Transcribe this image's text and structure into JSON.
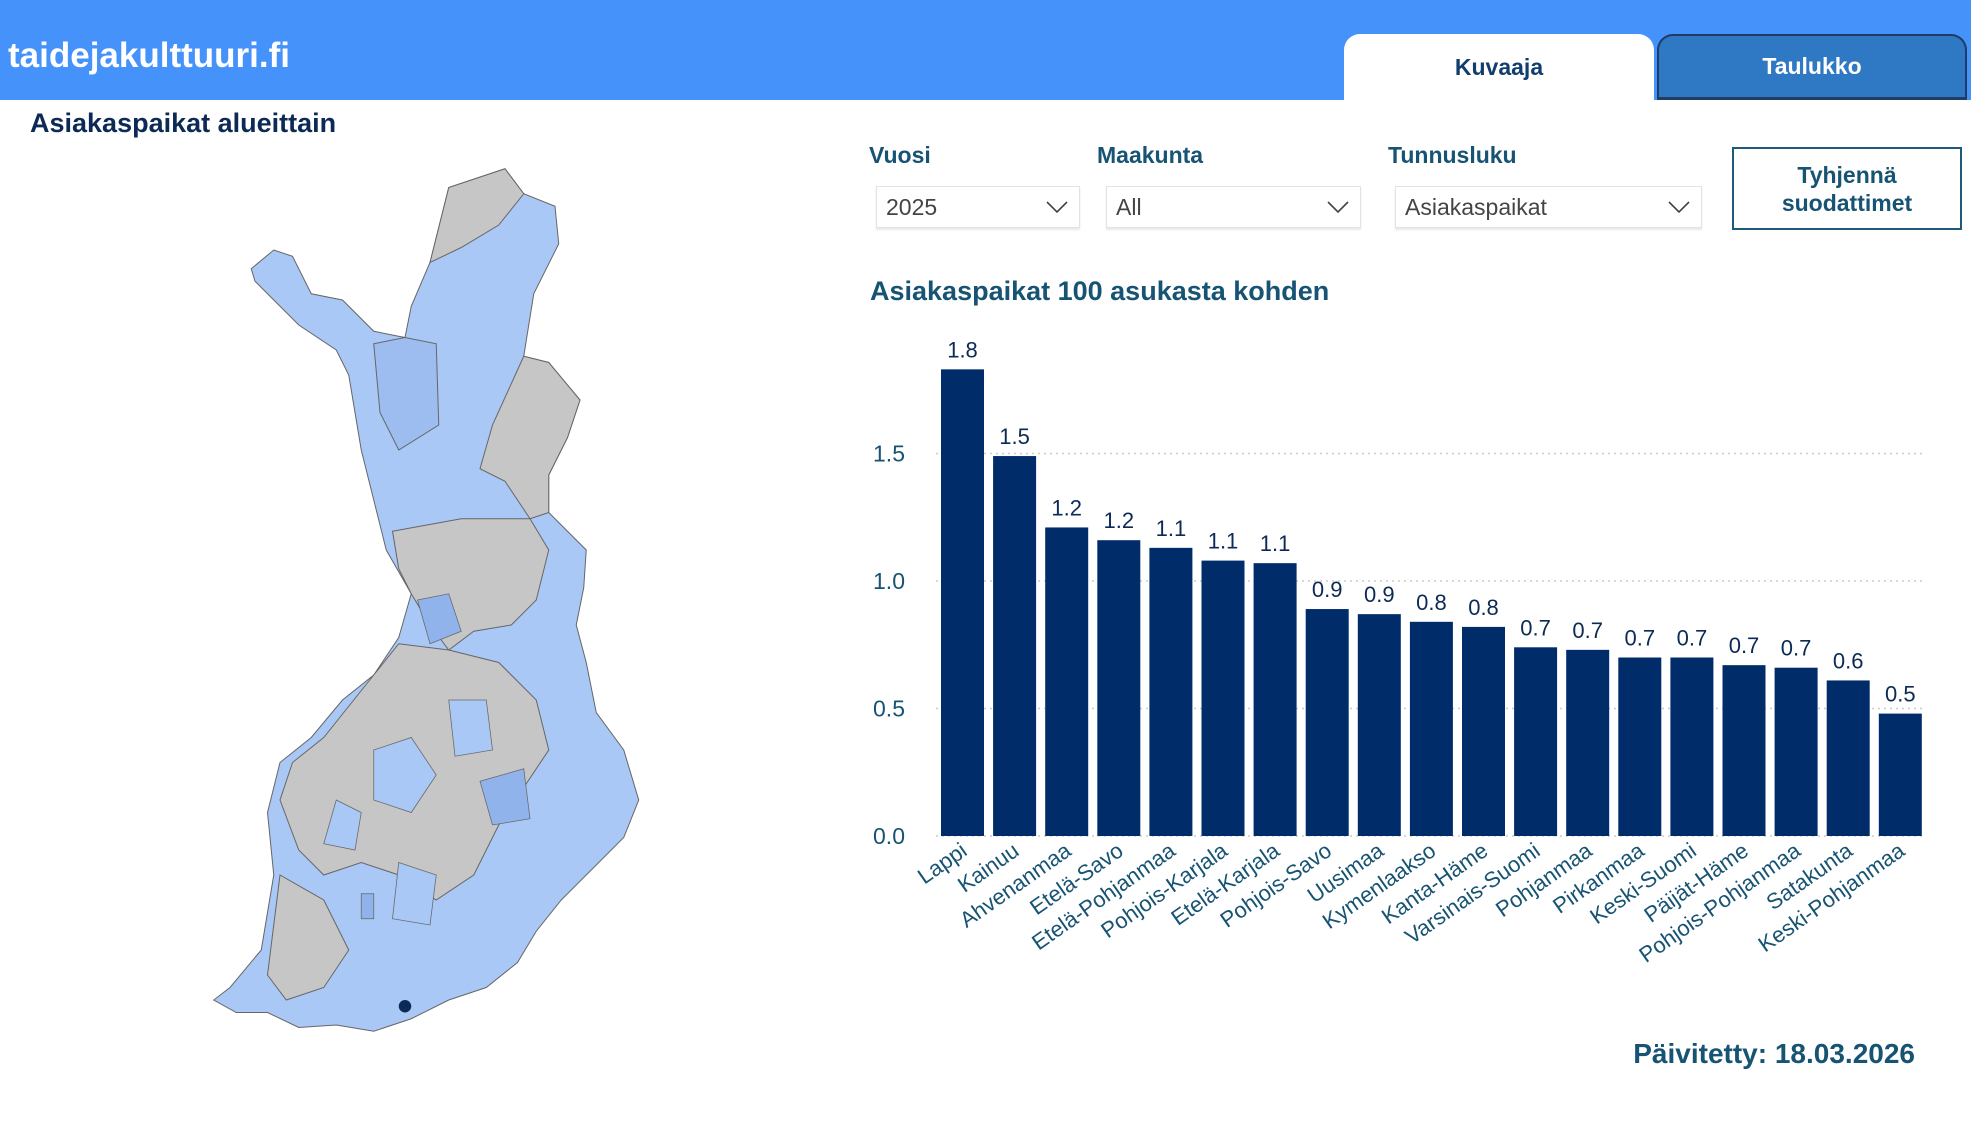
{
  "header": {
    "brand": "taidejakulttuuri.fi",
    "tabs": [
      {
        "label": "Kuvaaja",
        "active": true
      },
      {
        "label": "Taulukko",
        "active": false
      }
    ]
  },
  "map": {
    "title": "Asiakaspaikat alueittain",
    "colors": {
      "high": "#a9c8f5",
      "mid": "#8fb3ea",
      "none": "#c6c6c6",
      "max": "#0c2a55"
    }
  },
  "filters": {
    "year": {
      "label": "Vuosi",
      "value": "2025"
    },
    "region": {
      "label": "Maakunta",
      "value": "All"
    },
    "metric": {
      "label": "Tunnusluku",
      "value": "Asiakaspaikat"
    },
    "clear_button": "Tyhjennä suodattimet"
  },
  "chart_data": {
    "type": "bar",
    "title": "Asiakaspaikat 100 asukasta kohden",
    "xlabel": "",
    "ylabel": "",
    "ylim": [
      0,
      1.9
    ],
    "yticks": [
      0.0,
      0.5,
      1.0,
      1.5
    ],
    "ytick_labels": [
      "0.0",
      "0.5",
      "1.0",
      "1.5"
    ],
    "grid": true,
    "color": "#002d6a",
    "categories": [
      "Lappi",
      "Kainuu",
      "Ahvenanmaa",
      "Etelä-Savo",
      "Etelä-Pohjanmaa",
      "Pohjois-Karjala",
      "Etelä-Karjala",
      "Pohjois-Savo",
      "Uusimaa",
      "Kymenlaakso",
      "Kanta-Häme",
      "Varsinais-Suomi",
      "Pohjanmaa",
      "Pirkanmaa",
      "Keski-Suomi",
      "Päijät-Häme",
      "Pohjois-Pohjanmaa",
      "Satakunta",
      "Keski-Pohjanmaa"
    ],
    "values": [
      1.83,
      1.49,
      1.21,
      1.16,
      1.13,
      1.08,
      1.07,
      0.89,
      0.87,
      0.84,
      0.82,
      0.74,
      0.73,
      0.7,
      0.7,
      0.67,
      0.66,
      0.61,
      0.48
    ],
    "data_labels": [
      "1.8",
      "1.5",
      "1.2",
      "1.2",
      "1.1",
      "1.1",
      "1.1",
      "0.9",
      "0.9",
      "0.8",
      "0.8",
      "0.7",
      "0.7",
      "0.7",
      "0.7",
      "0.7",
      "0.7",
      "0.6",
      "0.5"
    ]
  },
  "footer": {
    "updated": "Päivitetty: 18.03.2026"
  }
}
